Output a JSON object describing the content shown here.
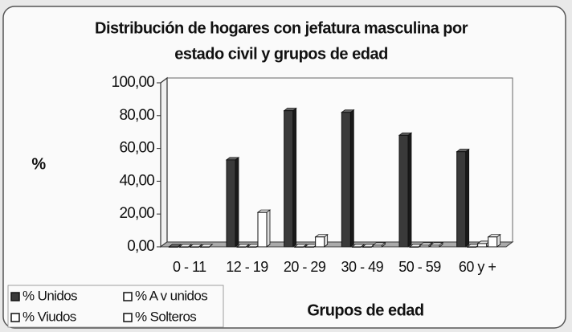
{
  "chart_data": {
    "type": "bar",
    "title": [
      "Distribución de hogares con jefatura masculina por",
      "estado civil y grupos de edad"
    ],
    "y_label": "%",
    "x_label": "Grupos de edad",
    "categories": [
      "0 - 11",
      "12 - 19",
      "20 - 29",
      "30 - 49",
      "50 - 59",
      "60 y +"
    ],
    "series": [
      {
        "name": "% Unidos",
        "color": "#3a3a3a",
        "values": [
          0,
          53,
          83,
          82,
          68,
          58
        ]
      },
      {
        "name": "% A v unidos",
        "color": "#ffffff",
        "values": [
          0,
          0,
          0,
          0,
          0,
          0
        ]
      },
      {
        "name": "% Viudos",
        "color": "#ffffff",
        "values": [
          0,
          0,
          0,
          0,
          1,
          2
        ]
      },
      {
        "name": "% Solteros",
        "color": "#ffffff",
        "values": [
          0,
          21,
          6,
          1,
          1,
          6
        ]
      }
    ],
    "ylim": [
      0,
      100
    ],
    "yticks": [
      {
        "value": 0,
        "label": "0,00"
      },
      {
        "value": 20,
        "label": "20,00"
      },
      {
        "value": 40,
        "label": "40,00"
      },
      {
        "value": 60,
        "label": "60,00"
      },
      {
        "value": 80,
        "label": "80,00"
      },
      {
        "value": 100,
        "label": "100,00"
      }
    ],
    "grid": false,
    "legend": "bottom-left"
  }
}
